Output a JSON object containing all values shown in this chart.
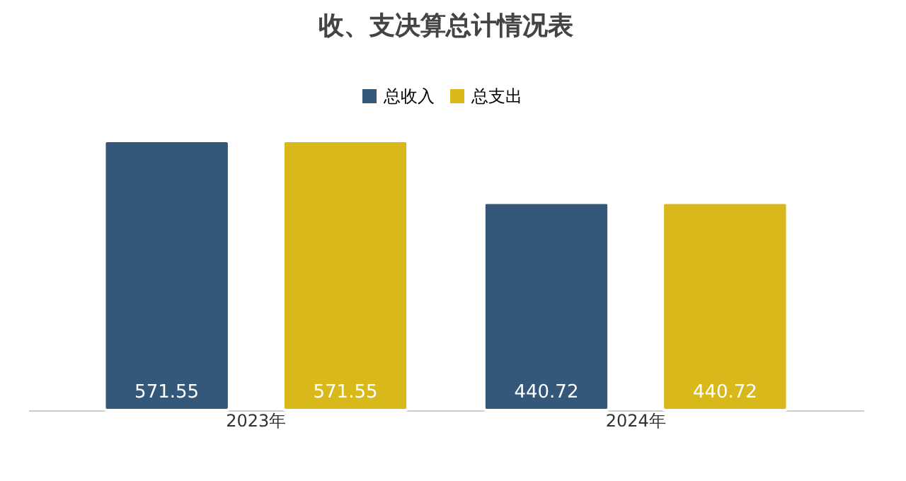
{
  "chart_data": {
    "type": "bar",
    "title": "收、支决算总计情况表",
    "categories": [
      "2023年",
      "2024年"
    ],
    "series": [
      {
        "name": "总收入",
        "color": "#34587a",
        "values": [
          571.55,
          440.72
        ]
      },
      {
        "name": "总支出",
        "color": "#d8b81a",
        "values": [
          571.55,
          440.72
        ]
      }
    ],
    "data_labels": true,
    "legend": "top",
    "grid": false
  }
}
